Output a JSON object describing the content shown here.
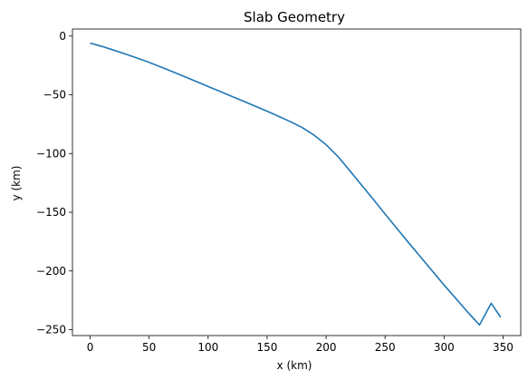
{
  "chart_data": {
    "type": "line",
    "title": "Slab Geometry",
    "xlabel": "x (km)",
    "ylabel": "y (km)",
    "xlim": [
      -15,
      365
    ],
    "ylim": [
      -255,
      6
    ],
    "grid": false,
    "legend": "none",
    "line_color": "#1f77b4",
    "x_ticks": [
      {
        "value": 0,
        "label": "0"
      },
      {
        "value": 50,
        "label": "50"
      },
      {
        "value": 100,
        "label": "100"
      },
      {
        "value": 150,
        "label": "150"
      },
      {
        "value": 200,
        "label": "200"
      },
      {
        "value": 250,
        "label": "250"
      },
      {
        "value": 300,
        "label": "300"
      },
      {
        "value": 350,
        "label": "350"
      }
    ],
    "y_ticks": [
      {
        "value": 0,
        "label": "0"
      },
      {
        "value": -50,
        "label": "−50"
      },
      {
        "value": -100,
        "label": "−100"
      },
      {
        "value": -150,
        "label": "−150"
      },
      {
        "value": -200,
        "label": "−200"
      },
      {
        "value": -250,
        "label": "−250"
      }
    ],
    "series": [
      {
        "x": [
          0,
          10,
          20,
          30,
          40,
          50,
          60,
          70,
          80,
          90,
          100,
          110,
          120,
          130,
          140,
          150,
          160,
          170,
          180,
          190,
          200,
          210,
          220,
          230,
          240,
          250,
          260,
          270,
          280,
          290,
          300,
          310,
          320,
          330,
          340,
          348
        ],
        "y": [
          -6,
          -8.8,
          -12,
          -15.3,
          -18.8,
          -22.4,
          -26.3,
          -30.4,
          -34.5,
          -38.7,
          -42.9,
          -47.1,
          -51.3,
          -55.5,
          -59.7,
          -64.0,
          -68.4,
          -73.0,
          -78.0,
          -84.5,
          -92.5,
          -102.5,
          -114.5,
          -126.8,
          -139.0,
          -151.5,
          -163.8,
          -176.0,
          -188.0,
          -200.0,
          -212.0,
          -223.5,
          -235.0,
          -246.0,
          -227.5,
          -239.5
        ]
      }
    ]
  }
}
